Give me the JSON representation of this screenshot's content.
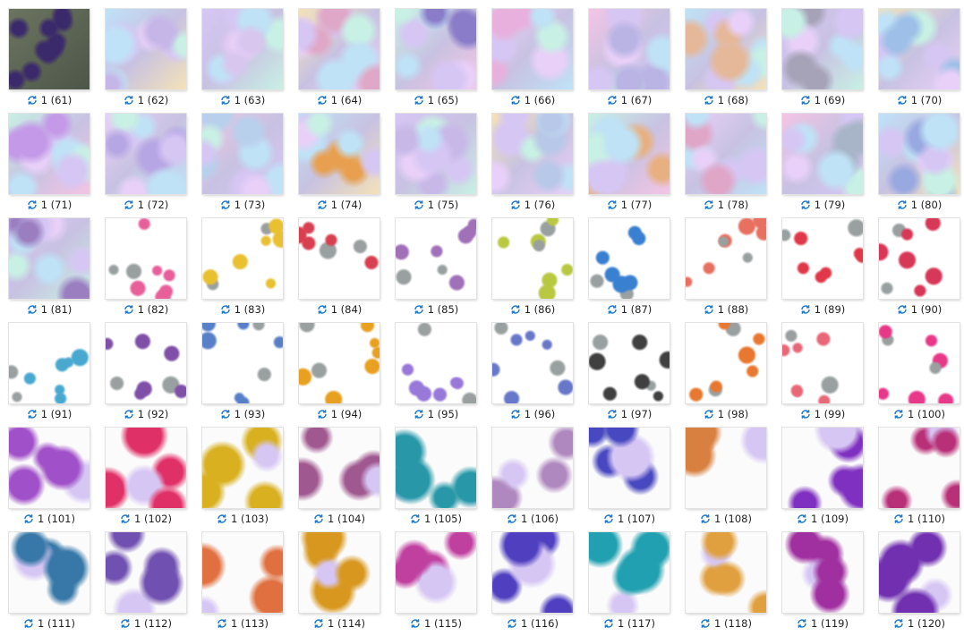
{
  "files": [
    "1 (61)",
    "1 (62)",
    "1 (63)",
    "1 (64)",
    "1 (65)",
    "1 (66)",
    "1 (67)",
    "1 (68)",
    "1 (69)",
    "1 (70)",
    "1 (71)",
    "1 (72)",
    "1 (73)",
    "1 (74)",
    "1 (75)",
    "1 (76)",
    "1 (77)",
    "1 (78)",
    "1 (79)",
    "1 (80)",
    "1 (81)",
    "1 (82)",
    "1 (83)",
    "1 (84)",
    "1 (85)",
    "1 (86)",
    "1 (87)",
    "1 (88)",
    "1 (89)",
    "1 (90)",
    "1 (91)",
    "1 (92)",
    "1 (93)",
    "1 (94)",
    "1 (95)",
    "1 (96)",
    "1 (97)",
    "1 (98)",
    "1 (99)",
    "1 (100)",
    "1 (101)",
    "1 (102)",
    "1 (103)",
    "1 (104)",
    "1 (105)",
    "1 (106)",
    "1 (107)",
    "1 (108)",
    "1 (109)",
    "1 (110)",
    "1 (111)",
    "1 (112)",
    "1 (113)",
    "1 (114)",
    "1 (115)",
    "1 (116)",
    "1 (117)",
    "1 (118)",
    "1 (119)",
    "1 (120)"
  ]
}
